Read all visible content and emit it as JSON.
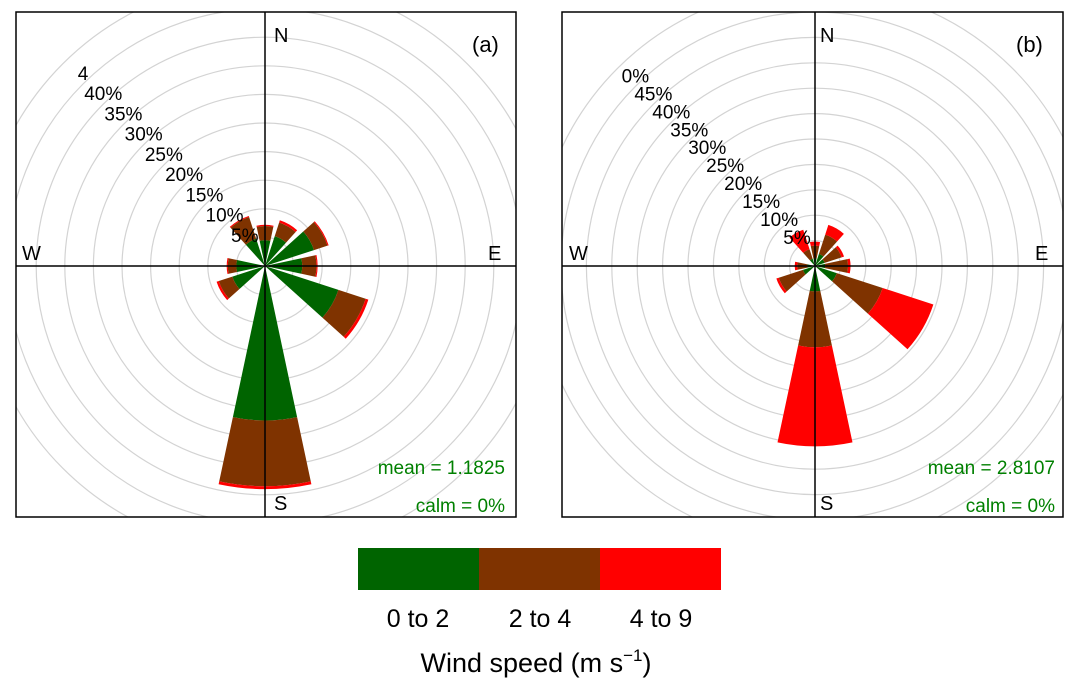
{
  "chart_data": [
    {
      "type": "windrose",
      "panel_label": "(a)",
      "compass": {
        "N": "N",
        "E": "E",
        "S": "S",
        "W": "W"
      },
      "ring_labels": [
        "5%",
        "10%",
        "15%",
        "20%",
        "25%",
        "30%",
        "35%",
        "40%",
        "4"
      ],
      "ring_max_percent": 45,
      "mean_label": "mean = 1.1825",
      "calm_label": "calm = 0%",
      "directions_deg": [
        0,
        30,
        60,
        90,
        120,
        150,
        180,
        210,
        240,
        270,
        300,
        330
      ],
      "series": [
        {
          "name": "0 to 2",
          "values": [
            4.5,
            5.5,
            9.0,
            6.5,
            13.5,
            0,
            27.0,
            0,
            6.0,
            5.0,
            0,
            5.0
          ]
        },
        {
          "name": "2 to 4",
          "values": [
            2.5,
            2.5,
            2.5,
            2.5,
            5.0,
            0,
            11.5,
            0,
            2.5,
            1.5,
            0,
            4.0
          ]
        },
        {
          "name": "4 to 9",
          "values": [
            0.2,
            0.4,
            0.2,
            0.2,
            0.5,
            0,
            0.5,
            0,
            0.4,
            0.2,
            0,
            0.2
          ]
        }
      ]
    },
    {
      "type": "windrose",
      "panel_label": "(b)",
      "compass": {
        "N": "N",
        "E": "E",
        "S": "S",
        "W": "W"
      },
      "ring_labels": [
        "5%",
        "10%",
        "15%",
        "20%",
        "25%",
        "30%",
        "35%",
        "40%",
        "45%",
        "0%"
      ],
      "ring_max_percent": 50,
      "mean_label": "mean = 2.8107",
      "calm_label": "calm = 0%",
      "directions_deg": [
        0,
        30,
        60,
        90,
        120,
        150,
        180,
        210,
        240,
        270,
        300,
        330
      ],
      "series": [
        {
          "name": "0 to 2",
          "values": [
            1.5,
            2.5,
            2.0,
            2.0,
            4.5,
            0,
            5.0,
            0,
            2.5,
            1.5,
            0,
            1.5
          ]
        },
        {
          "name": "2 to 4",
          "values": [
            2.5,
            4.0,
            3.5,
            4.5,
            9.5,
            0,
            11.0,
            0,
            5.0,
            2.0,
            0,
            2.0
          ]
        },
        {
          "name": "4 to 9",
          "values": [
            0.8,
            2.0,
            0.5,
            0.5,
            10.5,
            0,
            19.5,
            0,
            0.5,
            0.5,
            0,
            4.0
          ]
        }
      ]
    }
  ],
  "legend": {
    "title_prefix": "Wind speed (m s",
    "title_sup": "−1",
    "title_suffix": ")",
    "items": [
      {
        "label": "0 to 2",
        "color": "#006400"
      },
      {
        "label": "2 to 4",
        "color": "#7f3300"
      },
      {
        "label": "4 to 9",
        "color": "#ff0000"
      }
    ]
  },
  "colors": {
    "ring": "#d3d3d3",
    "axis": "#000000",
    "annotation": "#008000"
  }
}
